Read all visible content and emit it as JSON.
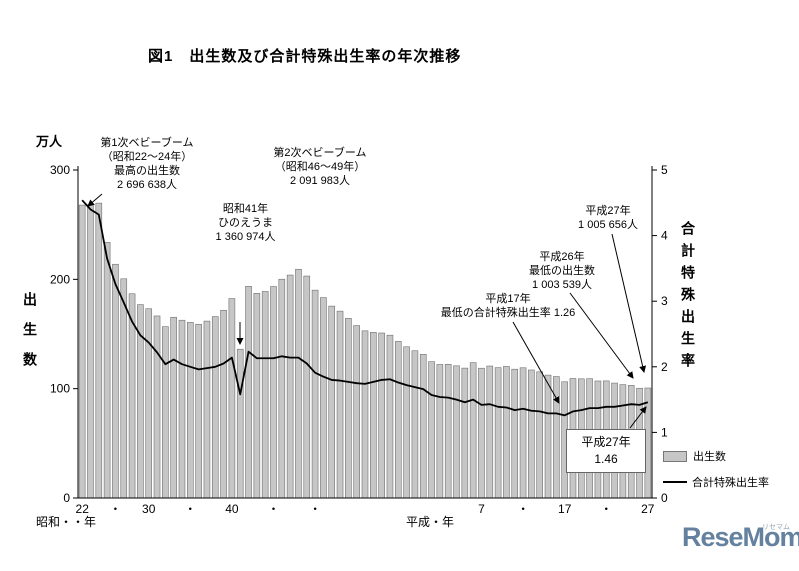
{
  "title": "図1　出生数及び合計特殊出生率の年次推移",
  "colors": {
    "bar_fill": "#c6c6c6",
    "bar_stroke": "#707070",
    "line": "#000000",
    "axis": "#000000"
  },
  "left_axis": {
    "unit": "万人",
    "title_vertical": "出生数",
    "ticks": [
      {
        "v": 300,
        "label": "300"
      },
      {
        "v": 200,
        "label": "200"
      },
      {
        "v": 100,
        "label": "100"
      },
      {
        "v": 0,
        "label": "0"
      }
    ]
  },
  "right_axis": {
    "title_vertical": "合計特殊出生率",
    "ticks": [
      {
        "v": 5,
        "label": "5"
      },
      {
        "v": 4,
        "label": "4"
      },
      {
        "v": 3,
        "label": "3"
      },
      {
        "v": 2,
        "label": "2"
      },
      {
        "v": 1,
        "label": "1"
      },
      {
        "v": 0,
        "label": "0"
      }
    ]
  },
  "x_axis": {
    "era_left": "昭和・・年",
    "era_right": "平成・年",
    "ticks": [
      {
        "i": 0,
        "label": "22"
      },
      {
        "i": 4,
        "label": "・"
      },
      {
        "i": 8,
        "label": "30"
      },
      {
        "i": 13,
        "label": "・"
      },
      {
        "i": 18,
        "label": "40"
      },
      {
        "i": 23,
        "label": "・"
      },
      {
        "i": 28,
        "label": "・"
      },
      {
        "i": 48,
        "label": "7"
      },
      {
        "i": 53,
        "label": "・"
      },
      {
        "i": 58,
        "label": "17"
      },
      {
        "i": 63,
        "label": "・"
      },
      {
        "i": 68,
        "label": "27"
      }
    ]
  },
  "legend": {
    "bar_label": "出生数",
    "line_label": "合計特殊出生率"
  },
  "annotations": {
    "boom1": "第1次ベビーブーム\n（昭和22～24年）\n最高の出生数\n2 696 638人",
    "hinoeuma": "昭和41年\nひのえうま\n1 360 974人",
    "boom2": "第2次ベビーブーム\n（昭和46～49年）\n2 091 983人",
    "h17": "平成17年\n最低の合計特殊出生率 1.26",
    "h26": "平成26年\n最低の出生数\n1 003 539人",
    "h27_births": "平成27年\n1 005 656人",
    "h27_tfr_box": "平成27年\n1.46"
  },
  "logo": {
    "text": "ReseMom",
    "dot": ".",
    "sub": "リセマム"
  },
  "chart_data": {
    "type": "combo",
    "title": "図1　出生数及び合計特殊出生率の年次推移",
    "x": [
      1947,
      1948,
      1949,
      1950,
      1951,
      1952,
      1953,
      1954,
      1955,
      1956,
      1957,
      1958,
      1959,
      1960,
      1961,
      1962,
      1963,
      1964,
      1965,
      1966,
      1967,
      1968,
      1969,
      1970,
      1971,
      1972,
      1973,
      1974,
      1975,
      1976,
      1977,
      1978,
      1979,
      1980,
      1981,
      1982,
      1983,
      1984,
      1985,
      1986,
      1987,
      1988,
      1989,
      1990,
      1991,
      1992,
      1993,
      1994,
      1995,
      1996,
      1997,
      1998,
      1999,
      2000,
      2001,
      2002,
      2003,
      2004,
      2005,
      2006,
      2007,
      2008,
      2009,
      2010,
      2011,
      2012,
      2013,
      2014,
      2015
    ],
    "left_axis_range": [
      0,
      300
    ],
    "right_axis_range": [
      0,
      5
    ],
    "series": [
      {
        "name": "出生数",
        "type": "bar",
        "axis": "left",
        "unit": "万人",
        "values": [
          267.9,
          268.2,
          269.7,
          233.8,
          213.8,
          200.5,
          186.8,
          176.9,
          173.1,
          166.5,
          156.7,
          165.3,
          162.6,
          160.6,
          158.9,
          161.8,
          165.9,
          171.7,
          182.4,
          136.1,
          193.6,
          187.2,
          188.9,
          193.4,
          200.1,
          203.9,
          209.2,
          203.0,
          190.1,
          183.3,
          175.5,
          170.9,
          164.3,
          157.7,
          152.9,
          151.5,
          150.9,
          148.9,
          143.2,
          138.3,
          134.7,
          131.4,
          124.7,
          122.1,
          122.3,
          120.9,
          118.8,
          123.8,
          118.7,
          120.7,
          119.2,
          120.3,
          117.8,
          119.1,
          117.1,
          115.4,
          112.4,
          111.1,
          106.3,
          109.3,
          109.0,
          109.1,
          107.0,
          107.1,
          105.1,
          103.7,
          103.0,
          100.4,
          100.6
        ]
      },
      {
        "name": "合計特殊出生率",
        "type": "line",
        "axis": "right",
        "values": [
          4.54,
          4.4,
          4.32,
          3.65,
          3.26,
          2.98,
          2.69,
          2.48,
          2.37,
          2.22,
          2.04,
          2.11,
          2.04,
          2.0,
          1.96,
          1.98,
          2.0,
          2.05,
          2.14,
          1.58,
          2.23,
          2.13,
          2.13,
          2.13,
          2.16,
          2.14,
          2.14,
          2.05,
          1.91,
          1.85,
          1.8,
          1.79,
          1.77,
          1.75,
          1.74,
          1.77,
          1.8,
          1.81,
          1.76,
          1.72,
          1.69,
          1.66,
          1.57,
          1.54,
          1.53,
          1.5,
          1.46,
          1.5,
          1.42,
          1.43,
          1.39,
          1.38,
          1.34,
          1.36,
          1.33,
          1.32,
          1.29,
          1.29,
          1.26,
          1.32,
          1.34,
          1.37,
          1.37,
          1.39,
          1.39,
          1.41,
          1.43,
          1.42,
          1.46
        ]
      }
    ]
  }
}
